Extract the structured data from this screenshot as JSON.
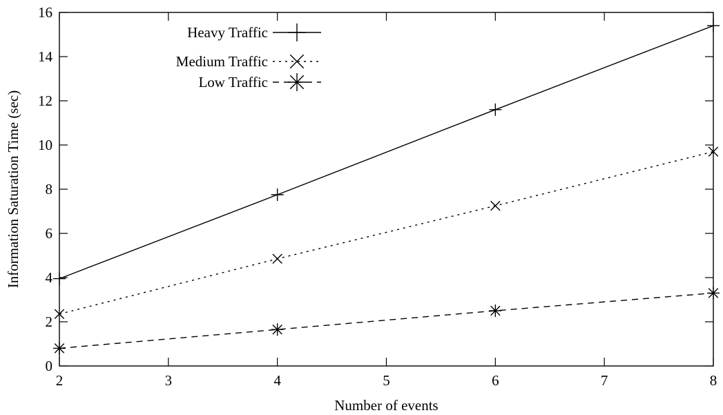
{
  "chart_data": {
    "type": "line",
    "title": "",
    "xlabel": "Number of events",
    "ylabel": "Information Saturation Time (sec)",
    "xlim": [
      2,
      8
    ],
    "ylim": [
      0,
      16
    ],
    "x_ticks": [
      2,
      3,
      4,
      5,
      6,
      7,
      8
    ],
    "y_ticks": [
      0,
      2,
      4,
      6,
      8,
      10,
      12,
      14,
      16
    ],
    "grid": false,
    "legend_position": "top-left",
    "x": [
      2,
      4,
      6,
      8
    ],
    "series": [
      {
        "name": "Heavy Traffic",
        "values": [
          3.95,
          7.75,
          11.6,
          15.4
        ],
        "marker": "plus",
        "dash": "solid",
        "color": "#000000"
      },
      {
        "name": "Medium Traffic",
        "values": [
          2.35,
          4.85,
          7.25,
          9.7
        ],
        "marker": "cross",
        "dash": "dotted",
        "color": "#000000"
      },
      {
        "name": "Low Traffic",
        "values": [
          0.8,
          1.65,
          2.5,
          3.3
        ],
        "marker": "star",
        "dash": "dashed",
        "color": "#000000"
      }
    ]
  }
}
